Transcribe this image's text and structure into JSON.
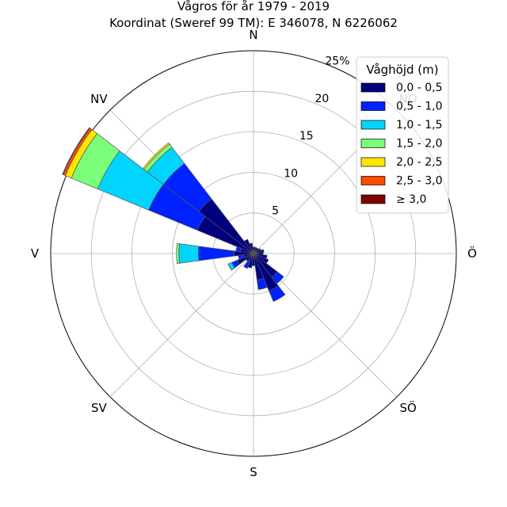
{
  "chart_data": {
    "type": "windrose",
    "title": "Vågros för år 1979 - 2019",
    "subtitle": "Koordinat (Sweref 99 TM): E 346078, N 6226062",
    "direction_labels": [
      "N",
      "NV",
      "V",
      "SV",
      "S",
      "SÖ",
      "Ö",
      "NO"
    ],
    "direction_angles": [
      0,
      315,
      270,
      225,
      180,
      135,
      90,
      45
    ],
    "radial_ticks": [
      5,
      10,
      15,
      20,
      25
    ],
    "radial_tick_labels": [
      "5",
      "10",
      "15",
      "20",
      "25%"
    ],
    "rmax": 25,
    "grid": true,
    "legend": {
      "title": "Våghöjd (m)",
      "placement": "top-right"
    },
    "bin_width_deg": 15,
    "series": [
      {
        "name": "0,0 - 0,5",
        "color": "#00007f"
      },
      {
        "name": "0,5 - 1,0",
        "color": "#0022ff"
      },
      {
        "name": "1,0 - 1,5",
        "color": "#00d4ff"
      },
      {
        "name": "1,5 - 2,0",
        "color": "#7bff7b"
      },
      {
        "name": "2,0 - 2,5",
        "color": "#ffe500"
      },
      {
        "name": "2,5 - 3,0",
        "color": "#ff4a00"
      },
      {
        "name": "≥ 3,0",
        "color": "#7f0000"
      }
    ],
    "sectors": [
      {
        "direction": 0,
        "values": [
          0.8
        ]
      },
      {
        "direction": 15,
        "values": [
          0.8
        ]
      },
      {
        "direction": 30,
        "values": [
          0.8
        ]
      },
      {
        "direction": 45,
        "values": [
          0.8
        ]
      },
      {
        "direction": 60,
        "values": [
          1.0
        ]
      },
      {
        "direction": 75,
        "values": [
          1.3
        ]
      },
      {
        "direction": 90,
        "values": [
          1.2
        ]
      },
      {
        "direction": 105,
        "values": [
          1.7
        ]
      },
      {
        "direction": 120,
        "values": [
          2.0
        ]
      },
      {
        "direction": 135,
        "values": [
          3.7,
          1.0
        ]
      },
      {
        "direction": 150,
        "values": [
          5.0,
          1.4
        ]
      },
      {
        "direction": 165,
        "values": [
          3.3,
          1.2
        ]
      },
      {
        "direction": 180,
        "values": [
          1.5
        ]
      },
      {
        "direction": 195,
        "values": [
          1.8
        ]
      },
      {
        "direction": 210,
        "values": [
          1.0,
          1.0
        ]
      },
      {
        "direction": 225,
        "values": [
          1.2
        ]
      },
      {
        "direction": 240,
        "values": [
          2.2,
          0.7,
          0.5
        ]
      },
      {
        "direction": 255,
        "values": [
          1.2,
          0.7
        ]
      },
      {
        "direction": 270,
        "values": [
          2.4,
          4.4,
          2.4,
          0.3
        ]
      },
      {
        "direction": 285,
        "values": [
          1.6,
          0.6
        ]
      },
      {
        "direction": 300,
        "values": [
          7.5,
          6.5,
          6.8,
          3.5,
          0.8,
          0.3,
          0.1
        ]
      },
      {
        "direction": 315,
        "values": [
          8.5,
          5.5,
          2.5,
          0.5,
          0.2
        ]
      },
      {
        "direction": 330,
        "values": [
          1.9
        ]
      },
      {
        "direction": 345,
        "values": [
          1.3
        ]
      }
    ]
  }
}
